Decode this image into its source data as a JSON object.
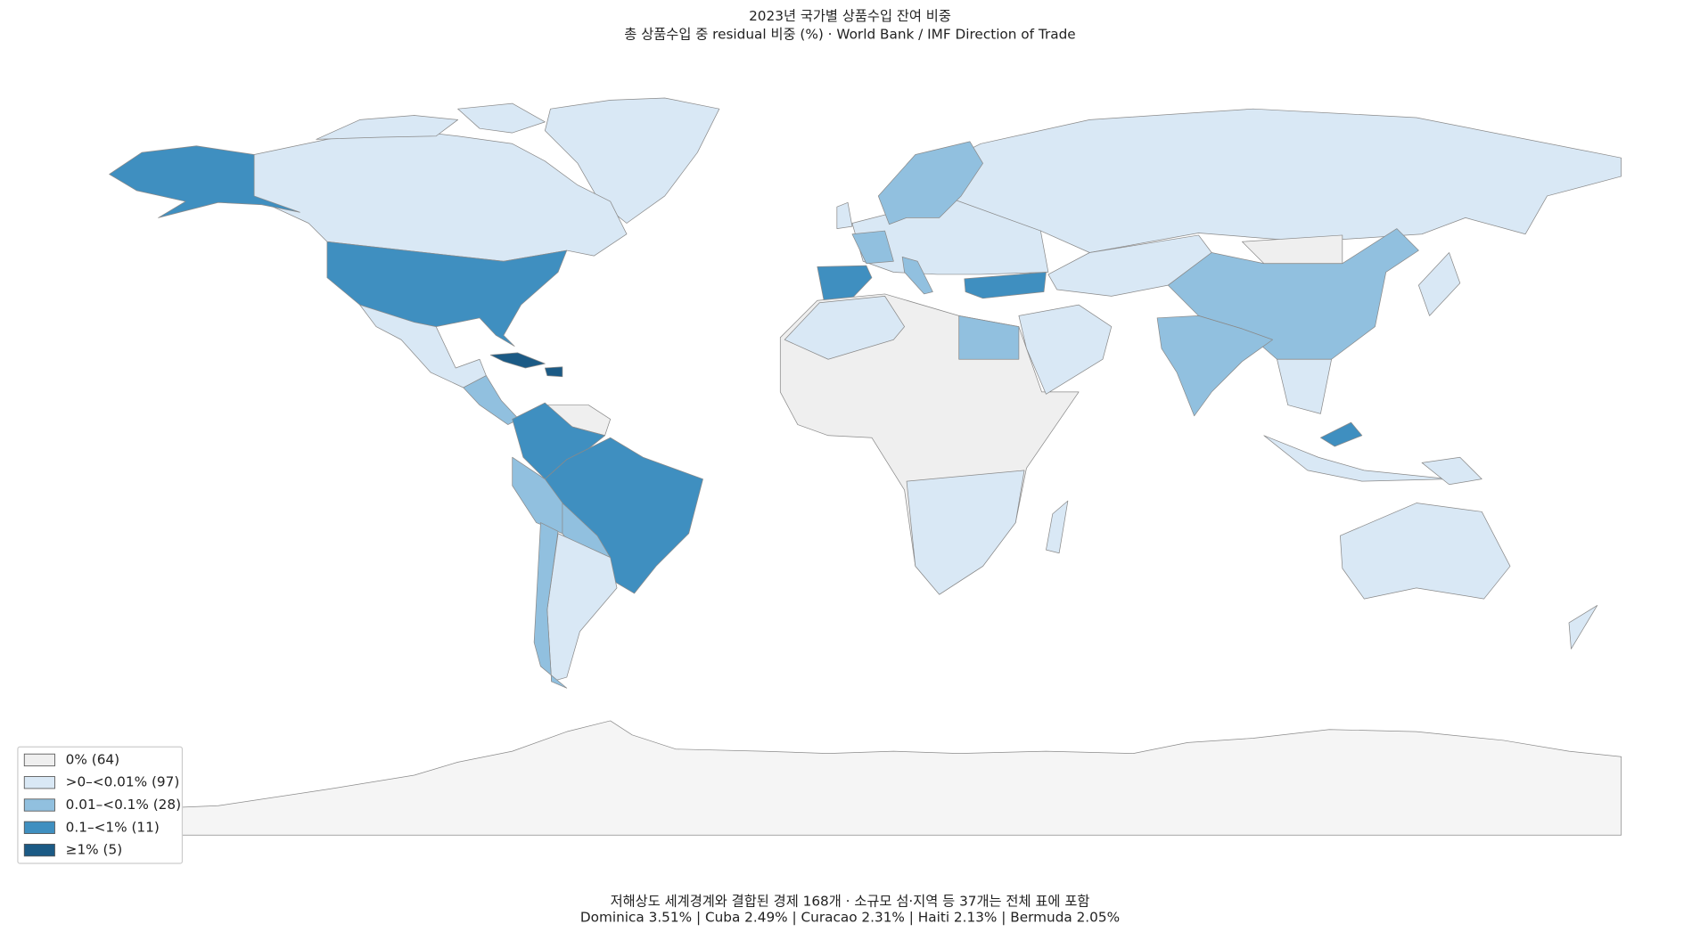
{
  "header": {
    "title": "2023년 국가별 상품수입 잔여 비중",
    "subtitle": "총 상품수입 중 residual 비중 (%) · World Bank / IMF Direction of Trade"
  },
  "legend": {
    "items": [
      {
        "label": "0% (64)",
        "color": "#efefef"
      },
      {
        "label": ">0–<0.01% (97)",
        "color": "#d9e8f5"
      },
      {
        "label": "0.01–<0.1% (28)",
        "color": "#91c0df"
      },
      {
        "label": "0.1–<1% (11)",
        "color": "#3f8fc0"
      },
      {
        "label": "≥1% (5)",
        "color": "#1b5a85"
      }
    ]
  },
  "footer": {
    "line1": "저해상도 세계경계와 결합된 경제 168개 · 소규모 섬·지역 등 37개는 전체 표에 포함",
    "line2": "Dominica 3.51% | Cuba 2.49% | Curacao 2.31% | Haiti 2.13% | Bermuda 2.05%"
  }
}
